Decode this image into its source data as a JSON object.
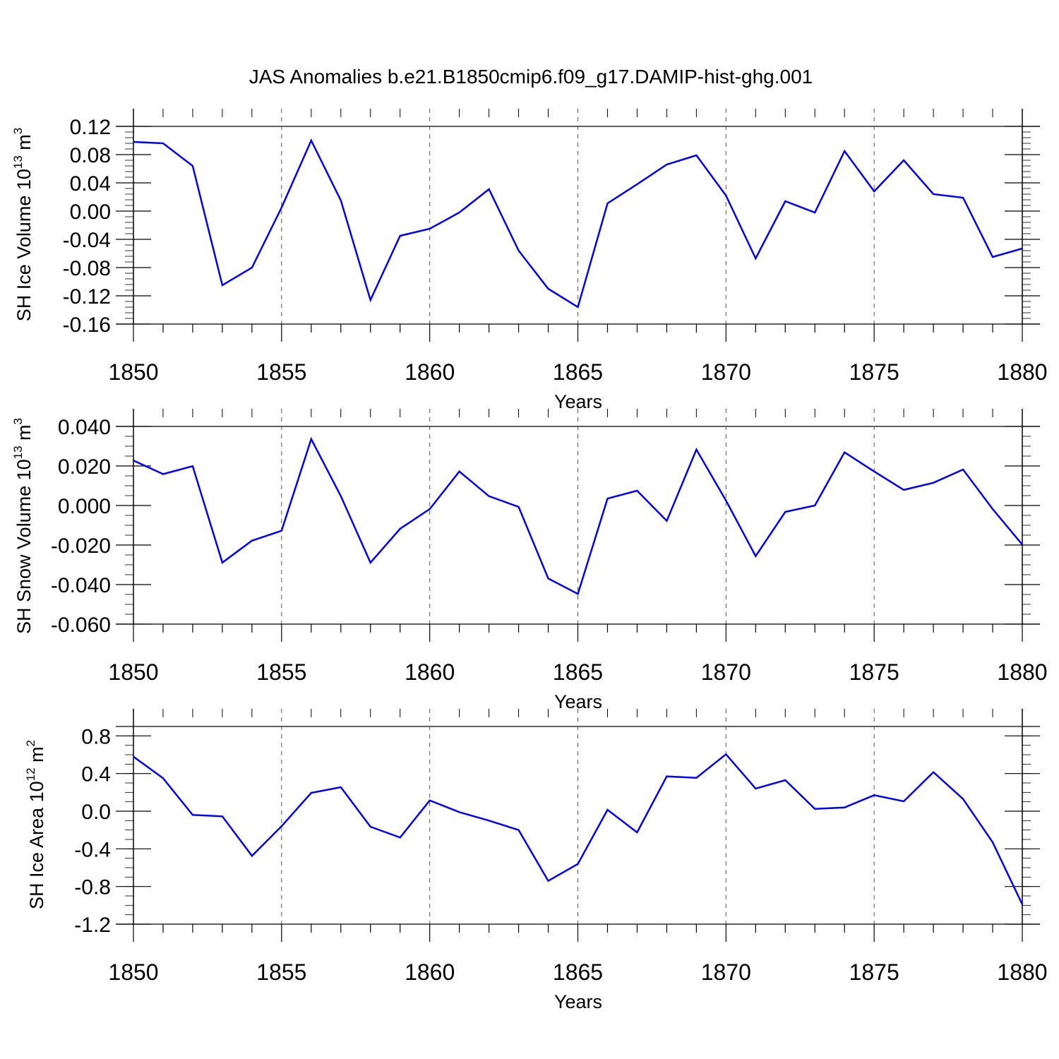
{
  "title": "JAS Anomalies b.e21.B1850cmip6.f09_g17.DAMIP-hist-ghg.001",
  "line_color": "#0000ff",
  "chart_data": [
    {
      "type": "line",
      "ylabel_main": "SH Ice Volume 10",
      "ylabel_exp": "13",
      "ylabel_unit": " m",
      "ylabel_unit_exp": "3",
      "xlabel": "Years",
      "xlim": [
        1850,
        1880
      ],
      "ylim": [
        -0.16,
        0.12
      ],
      "x_ticks": [
        1850,
        1855,
        1860,
        1865,
        1870,
        1875,
        1880
      ],
      "y_ticks": [
        "0.12",
        "0.08",
        "0.04",
        "0.00",
        "-0.04",
        "-0.08",
        "-0.12",
        "-0.16"
      ],
      "x": [
        1850,
        1851,
        1852,
        1853,
        1854,
        1855,
        1856,
        1857,
        1858,
        1859,
        1860,
        1861,
        1862,
        1863,
        1864,
        1865,
        1866,
        1867,
        1868,
        1869,
        1870,
        1871,
        1872,
        1873,
        1874,
        1875,
        1876,
        1877,
        1878,
        1879,
        1880
      ],
      "values": [
        0.098,
        0.096,
        0.064,
        -0.105,
        -0.08,
        0.005,
        0.1,
        0.015,
        -0.126,
        -0.035,
        -0.025,
        -0.002,
        0.031,
        -0.056,
        -0.11,
        -0.136,
        0.011,
        0.038,
        0.066,
        0.079,
        0.022,
        -0.067,
        0.014,
        -0.002,
        0.085,
        0.028,
        0.072,
        0.024,
        0.019,
        -0.065,
        -0.053
      ]
    },
    {
      "type": "line",
      "ylabel_main": "SH Snow Volume 10",
      "ylabel_exp": "13",
      "ylabel_unit": " m",
      "ylabel_unit_exp": "3",
      "xlabel": "Years",
      "xlim": [
        1850,
        1880
      ],
      "ylim": [
        -0.06,
        0.04
      ],
      "x_ticks": [
        1850,
        1855,
        1860,
        1865,
        1870,
        1875,
        1880
      ],
      "y_ticks": [
        "0.040",
        "0.020",
        "0.000",
        "-0.020",
        "-0.040",
        "-0.060"
      ],
      "x": [
        1850,
        1851,
        1852,
        1853,
        1854,
        1855,
        1856,
        1857,
        1858,
        1859,
        1860,
        1861,
        1862,
        1863,
        1864,
        1865,
        1866,
        1867,
        1868,
        1869,
        1870,
        1871,
        1872,
        1873,
        1874,
        1875,
        1876,
        1877,
        1878,
        1879,
        1880
      ],
      "values": [
        0.0228,
        0.0159,
        0.0199,
        -0.0289,
        -0.0178,
        -0.0128,
        0.0336,
        0.0047,
        -0.0289,
        -0.0118,
        -0.0018,
        0.0172,
        0.0047,
        -0.0007,
        -0.0369,
        -0.0447,
        0.0035,
        0.0075,
        -0.0078,
        0.0283,
        0.0025,
        -0.0256,
        -0.0032,
        0.0,
        0.0269,
        0.0172,
        0.0079,
        0.0115,
        0.0182,
        -0.0018,
        -0.0198
      ]
    },
    {
      "type": "line",
      "ylabel_main": "SH Ice Area 10",
      "ylabel_exp": "12",
      "ylabel_unit": " m",
      "ylabel_unit_exp": "2",
      "xlabel": "Years",
      "xlim": [
        1850,
        1880
      ],
      "ylim": [
        -1.2,
        0.9
      ],
      "x_ticks": [
        1850,
        1855,
        1860,
        1865,
        1870,
        1875,
        1880
      ],
      "y_ticks": [
        "0.8",
        "0.4",
        "0.0",
        "-0.4",
        "-0.8",
        "-1.2"
      ],
      "x": [
        1850,
        1851,
        1852,
        1853,
        1854,
        1855,
        1856,
        1857,
        1858,
        1859,
        1860,
        1861,
        1862,
        1863,
        1864,
        1865,
        1866,
        1867,
        1868,
        1869,
        1870,
        1871,
        1872,
        1873,
        1874,
        1875,
        1876,
        1877,
        1878,
        1879,
        1880
      ],
      "values": [
        0.58,
        0.35,
        -0.04,
        -0.055,
        -0.475,
        -0.16,
        0.195,
        0.255,
        -0.165,
        -0.28,
        0.115,
        -0.01,
        -0.1,
        -0.2,
        -0.74,
        -0.56,
        0.015,
        -0.225,
        0.37,
        0.355,
        0.605,
        0.24,
        0.33,
        0.025,
        0.04,
        0.17,
        0.105,
        0.415,
        0.13,
        -0.33,
        -0.99
      ]
    }
  ]
}
